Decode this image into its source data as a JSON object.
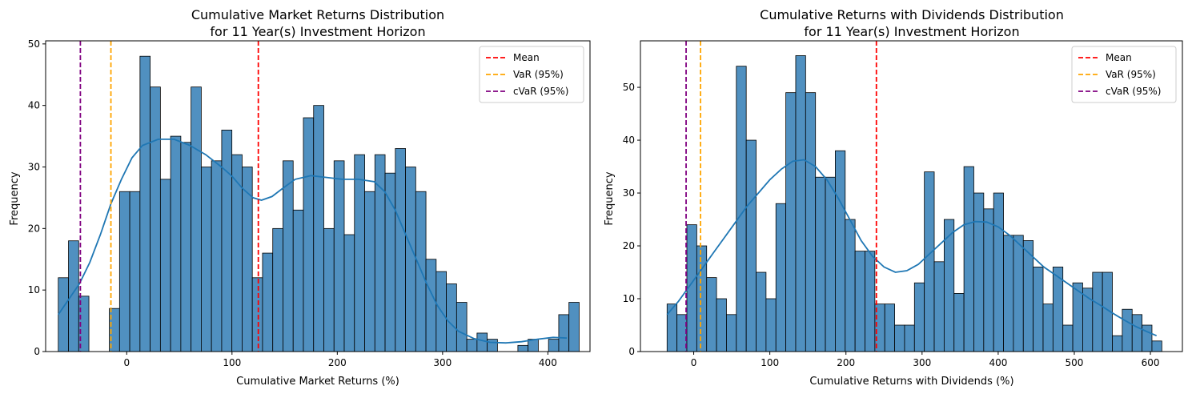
{
  "chart_data": [
    {
      "type": "histogram",
      "title_line1": "Cumulative Market Returns Distribution",
      "title_line2": "for 11 Year(s) Investment Horizon",
      "xlabel": "Cumulative Market Returns (%)",
      "ylabel": "Frequency",
      "xlim": [
        -77,
        440
      ],
      "ylim": [
        0,
        50.5
      ],
      "xticks": [
        0,
        100,
        200,
        300,
        400
      ],
      "yticks": [
        0,
        10,
        20,
        30,
        40,
        50
      ],
      "bin_start": -65,
      "bin_width": 9.7,
      "counts": [
        12,
        18,
        9,
        0,
        0,
        7,
        26,
        26,
        48,
        43,
        28,
        35,
        34,
        43,
        30,
        31,
        36,
        32,
        30,
        12,
        16,
        20,
        31,
        23,
        38,
        40,
        20,
        31,
        19,
        32,
        26,
        32,
        29,
        33,
        30,
        26,
        15,
        13,
        11,
        8,
        2,
        3,
        2,
        0,
        0,
        1,
        2,
        0,
        2,
        6,
        8
      ],
      "kde": [
        [
          -65,
          6
        ],
        [
          -55,
          8.5
        ],
        [
          -45,
          11
        ],
        [
          -35,
          14.5
        ],
        [
          -25,
          19
        ],
        [
          -15,
          24
        ],
        [
          -5,
          28
        ],
        [
          5,
          31.5
        ],
        [
          15,
          33.5
        ],
        [
          30,
          34.5
        ],
        [
          45,
          34.5
        ],
        [
          60,
          33.5
        ],
        [
          75,
          32
        ],
        [
          90,
          30
        ],
        [
          100,
          28.5
        ],
        [
          110,
          26.5
        ],
        [
          120,
          25
        ],
        [
          128,
          24.6
        ],
        [
          138,
          25.2
        ],
        [
          148,
          26.5
        ],
        [
          160,
          28
        ],
        [
          175,
          28.6
        ],
        [
          190,
          28.3
        ],
        [
          205,
          28
        ],
        [
          220,
          28
        ],
        [
          235,
          27.6
        ],
        [
          245,
          26
        ],
        [
          255,
          23
        ],
        [
          265,
          19
        ],
        [
          275,
          15
        ],
        [
          285,
          11
        ],
        [
          295,
          7.5
        ],
        [
          305,
          5
        ],
        [
          315,
          3.3
        ],
        [
          330,
          2.1
        ],
        [
          345,
          1.5
        ],
        [
          360,
          1.4
        ],
        [
          375,
          1.6
        ],
        [
          390,
          2
        ],
        [
          405,
          2.3
        ],
        [
          418,
          2.2
        ]
      ],
      "lines": [
        {
          "name": "Mean",
          "x": 125,
          "color": "#ff0000"
        },
        {
          "name": "VaR (95%)",
          "x": -15,
          "color": "#ffa500"
        },
        {
          "name": "cVaR (95%)",
          "x": -44,
          "color": "#800080"
        }
      ],
      "bar_color": "#5090c0",
      "kde_color": "#1f77b4",
      "legend_position": "top-right"
    },
    {
      "type": "histogram",
      "title_line1": "Cumulative Returns with Dividends Distribution",
      "title_line2": "for 11 Year(s) Investment Horizon",
      "xlabel": "Cumulative Returns with Dividends (%)",
      "ylabel": "Frequency",
      "xlim": [
        -70,
        642
      ],
      "ylim": [
        0,
        58.8
      ],
      "xticks": [
        0,
        100,
        200,
        300,
        400,
        500,
        600
      ],
      "yticks": [
        0,
        10,
        20,
        30,
        40,
        50
      ],
      "bin_start": -35,
      "bin_width": 13,
      "counts": [
        9,
        7,
        24,
        20,
        14,
        10,
        7,
        54,
        40,
        15,
        10,
        28,
        49,
        56,
        49,
        33,
        33,
        38,
        25,
        19,
        19,
        9,
        9,
        5,
        5,
        13,
        34,
        17,
        25,
        11,
        35,
        30,
        27,
        30,
        22,
        22,
        21,
        16,
        9,
        16,
        5,
        13,
        12,
        15,
        15,
        3,
        8,
        7,
        5,
        2
      ],
      "kde": [
        [
          -35,
          7
        ],
        [
          -20,
          9.5
        ],
        [
          -5,
          12.5
        ],
        [
          10,
          15.5
        ],
        [
          25,
          18.5
        ],
        [
          40,
          21.5
        ],
        [
          55,
          24.5
        ],
        [
          70,
          27.5
        ],
        [
          85,
          30
        ],
        [
          100,
          32.5
        ],
        [
          115,
          34.5
        ],
        [
          130,
          36
        ],
        [
          145,
          36.3
        ],
        [
          160,
          35
        ],
        [
          175,
          32.5
        ],
        [
          190,
          29
        ],
        [
          205,
          25
        ],
        [
          220,
          21
        ],
        [
          235,
          18
        ],
        [
          250,
          16
        ],
        [
          265,
          15
        ],
        [
          280,
          15.3
        ],
        [
          295,
          16.5
        ],
        [
          310,
          18.5
        ],
        [
          325,
          20.5
        ],
        [
          340,
          22.5
        ],
        [
          355,
          24
        ],
        [
          370,
          24.6
        ],
        [
          385,
          24.5
        ],
        [
          400,
          23.6
        ],
        [
          415,
          22
        ],
        [
          430,
          20
        ],
        [
          445,
          18
        ],
        [
          460,
          16
        ],
        [
          475,
          14.5
        ],
        [
          490,
          13
        ],
        [
          505,
          11.5
        ],
        [
          520,
          10
        ],
        [
          535,
          8.7
        ],
        [
          550,
          7.3
        ],
        [
          565,
          6
        ],
        [
          580,
          4.8
        ],
        [
          595,
          3.8
        ],
        [
          608,
          3
        ]
      ],
      "lines": [
        {
          "name": "Mean",
          "x": 240,
          "color": "#ff0000"
        },
        {
          "name": "VaR (95%)",
          "x": 9,
          "color": "#ffa500"
        },
        {
          "name": "cVaR (95%)",
          "x": -10,
          "color": "#800080"
        }
      ],
      "bar_color": "#5090c0",
      "kde_color": "#1f77b4",
      "legend_position": "top-right"
    }
  ]
}
